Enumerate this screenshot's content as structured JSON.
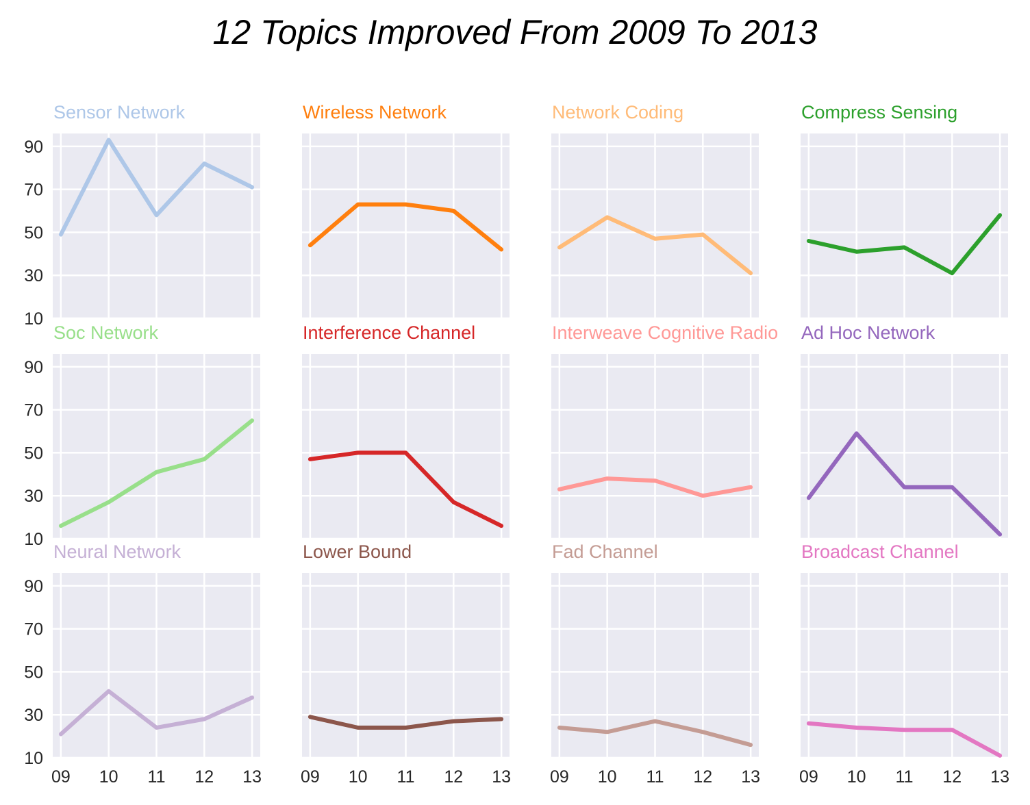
{
  "chart_data": {
    "type": "line",
    "title": "12 Topics Improved From 2009 To 2013",
    "x_ticks": [
      "09",
      "10",
      "11",
      "12",
      "13"
    ],
    "y_ticks": [
      "10",
      "30",
      "50",
      "70",
      "90"
    ],
    "ylim": [
      10,
      96
    ],
    "grid": true,
    "layout": "3x4 small multiples, shared axes",
    "series": [
      {
        "name": "Sensor Network",
        "color": "#aec7e8",
        "values": [
          49,
          93,
          58,
          82,
          71
        ]
      },
      {
        "name": "Wireless Network",
        "color": "#ff7f0e",
        "values": [
          44,
          63,
          63,
          60,
          42
        ]
      },
      {
        "name": "Network Coding",
        "color": "#ffbb78",
        "values": [
          43,
          57,
          47,
          49,
          31
        ]
      },
      {
        "name": "Compress Sensing",
        "color": "#2ca02c",
        "values": [
          46,
          41,
          43,
          31,
          58
        ]
      },
      {
        "name": "Soc Network",
        "color": "#98df8a",
        "values": [
          16,
          27,
          41,
          47,
          65
        ]
      },
      {
        "name": "Interference Channel",
        "color": "#d62728",
        "values": [
          47,
          50,
          50,
          27,
          16
        ]
      },
      {
        "name": "Interweave Cognitive Radio",
        "color": "#ff9896",
        "values": [
          33,
          38,
          37,
          30,
          34
        ]
      },
      {
        "name": "Ad Hoc Network",
        "color": "#9467bd",
        "values": [
          29,
          59,
          34,
          34,
          12
        ]
      },
      {
        "name": "Neural Network",
        "color": "#c5b0d5",
        "values": [
          21,
          41,
          24,
          28,
          38
        ]
      },
      {
        "name": "Lower Bound",
        "color": "#8c564b",
        "values": [
          29,
          24,
          24,
          27,
          28
        ]
      },
      {
        "name": "Fad Channel",
        "color": "#c49c94",
        "values": [
          24,
          22,
          27,
          22,
          16
        ]
      },
      {
        "name": "Broadcast Channel",
        "color": "#e377c2",
        "values": [
          26,
          24,
          23,
          23,
          11
        ]
      }
    ]
  }
}
